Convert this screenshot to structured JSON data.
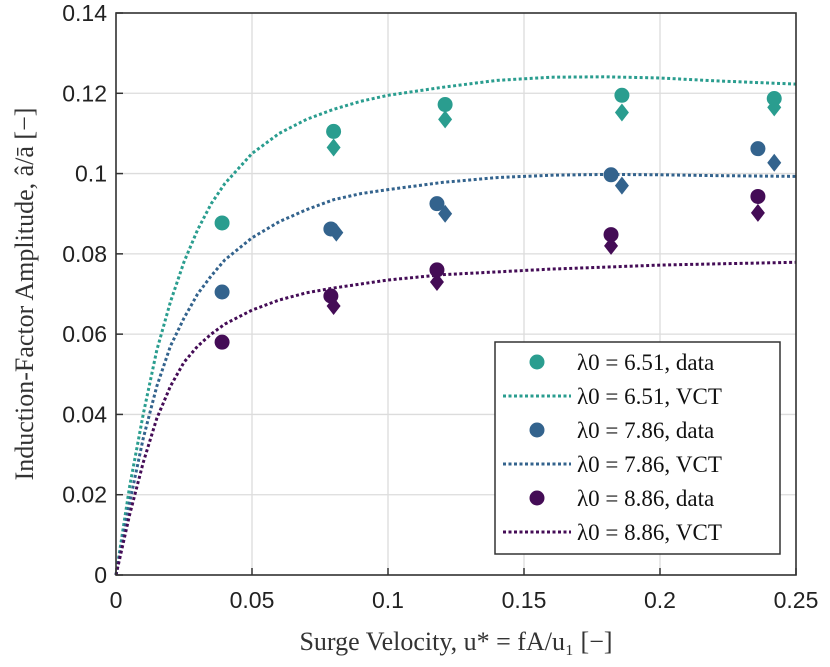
{
  "chart_data": {
    "type": "scatter",
    "title": "",
    "xlabel": "Surge Velocity, u* = fA/u₁ [−]",
    "ylabel": "Induction-Factor Amplitude, â/ā [−]",
    "xlim": [
      0,
      0.25
    ],
    "ylim": [
      0,
      0.14
    ],
    "xticks": [
      0,
      0.05,
      0.1,
      0.15,
      0.2,
      0.25
    ],
    "xtick_labels": [
      "0",
      "0.05",
      "0.1",
      "0.15",
      "0.2",
      "0.25"
    ],
    "yticks": [
      0,
      0.02,
      0.04,
      0.06,
      0.08,
      0.1,
      0.12,
      0.14
    ],
    "ytick_labels": [
      "0",
      "0.02",
      "0.04",
      "0.06",
      "0.08",
      "0.1",
      "0.12",
      "0.14"
    ],
    "grid": true,
    "legend_position": "bottom-right",
    "series": [
      {
        "name": "λ0 = 6.51",
        "color": "#2a9d8f",
        "data_label": "λ0 = 6.51, data",
        "vct_label": "λ0 = 6.51, VCT",
        "circles": [
          [
            0.039,
            0.0877
          ],
          [
            0.08,
            0.1105
          ],
          [
            0.121,
            0.1172
          ],
          [
            0.186,
            0.1195
          ],
          [
            0.242,
            0.1187
          ]
        ],
        "diamonds": [
          [
            0.08,
            0.1065
          ],
          [
            0.121,
            0.1135
          ],
          [
            0.186,
            0.1152
          ],
          [
            0.242,
            0.1165
          ]
        ],
        "vct": [
          [
            0,
            0
          ],
          [
            0.005,
            0.022
          ],
          [
            0.01,
            0.04
          ],
          [
            0.015,
            0.056
          ],
          [
            0.02,
            0.068
          ],
          [
            0.025,
            0.078
          ],
          [
            0.03,
            0.086
          ],
          [
            0.035,
            0.0925
          ],
          [
            0.04,
            0.0975
          ],
          [
            0.05,
            0.105
          ],
          [
            0.06,
            0.11
          ],
          [
            0.07,
            0.1135
          ],
          [
            0.08,
            0.116
          ],
          [
            0.09,
            0.118
          ],
          [
            0.1,
            0.1195
          ],
          [
            0.12,
            0.1215
          ],
          [
            0.14,
            0.1232
          ],
          [
            0.16,
            0.124
          ],
          [
            0.18,
            0.1241
          ],
          [
            0.2,
            0.1238
          ],
          [
            0.22,
            0.1231
          ],
          [
            0.25,
            0.1223
          ]
        ]
      },
      {
        "name": "λ0 = 7.86",
        "color": "#33638d",
        "data_label": "λ0 = 7.86, data",
        "vct_label": "λ0 = 7.86, VCT",
        "circles": [
          [
            0.039,
            0.0705
          ],
          [
            0.079,
            0.0862
          ],
          [
            0.118,
            0.0925
          ],
          [
            0.182,
            0.0997
          ],
          [
            0.236,
            0.1062
          ]
        ],
        "diamonds": [
          [
            0.081,
            0.0853
          ],
          [
            0.121,
            0.09
          ],
          [
            0.186,
            0.097
          ],
          [
            0.242,
            0.1027
          ]
        ],
        "vct": [
          [
            0,
            0
          ],
          [
            0.005,
            0.018
          ],
          [
            0.01,
            0.034
          ],
          [
            0.015,
            0.047
          ],
          [
            0.02,
            0.057
          ],
          [
            0.025,
            0.064
          ],
          [
            0.03,
            0.07
          ],
          [
            0.035,
            0.0745
          ],
          [
            0.04,
            0.0785
          ],
          [
            0.05,
            0.084
          ],
          [
            0.06,
            0.088
          ],
          [
            0.07,
            0.091
          ],
          [
            0.08,
            0.0935
          ],
          [
            0.09,
            0.095
          ],
          [
            0.1,
            0.096
          ],
          [
            0.12,
            0.0978
          ],
          [
            0.14,
            0.099
          ],
          [
            0.16,
            0.0996
          ],
          [
            0.18,
            0.0998
          ],
          [
            0.2,
            0.0997
          ],
          [
            0.22,
            0.0995
          ],
          [
            0.25,
            0.0993
          ]
        ]
      },
      {
        "name": "λ0 = 8.86",
        "color": "#440c56",
        "data_label": "λ0 = 8.86, data",
        "vct_label": "λ0 = 8.86, VCT",
        "circles": [
          [
            0.039,
            0.058
          ],
          [
            0.079,
            0.0695
          ],
          [
            0.118,
            0.076
          ],
          [
            0.182,
            0.0848
          ],
          [
            0.236,
            0.0943
          ]
        ],
        "diamonds": [
          [
            0.08,
            0.067
          ],
          [
            0.118,
            0.073
          ],
          [
            0.182,
            0.082
          ],
          [
            0.236,
            0.0902
          ]
        ],
        "vct": [
          [
            0,
            0
          ],
          [
            0.005,
            0.015
          ],
          [
            0.01,
            0.028
          ],
          [
            0.015,
            0.039
          ],
          [
            0.02,
            0.047
          ],
          [
            0.025,
            0.053
          ],
          [
            0.03,
            0.057
          ],
          [
            0.035,
            0.06
          ],
          [
            0.04,
            0.0625
          ],
          [
            0.05,
            0.066
          ],
          [
            0.06,
            0.0685
          ],
          [
            0.07,
            0.0703
          ],
          [
            0.08,
            0.0715
          ],
          [
            0.09,
            0.0725
          ],
          [
            0.1,
            0.0735
          ],
          [
            0.12,
            0.0748
          ],
          [
            0.14,
            0.0755
          ],
          [
            0.16,
            0.0762
          ],
          [
            0.18,
            0.0767
          ],
          [
            0.2,
            0.0772
          ],
          [
            0.22,
            0.0775
          ],
          [
            0.25,
            0.0779
          ]
        ]
      }
    ]
  }
}
